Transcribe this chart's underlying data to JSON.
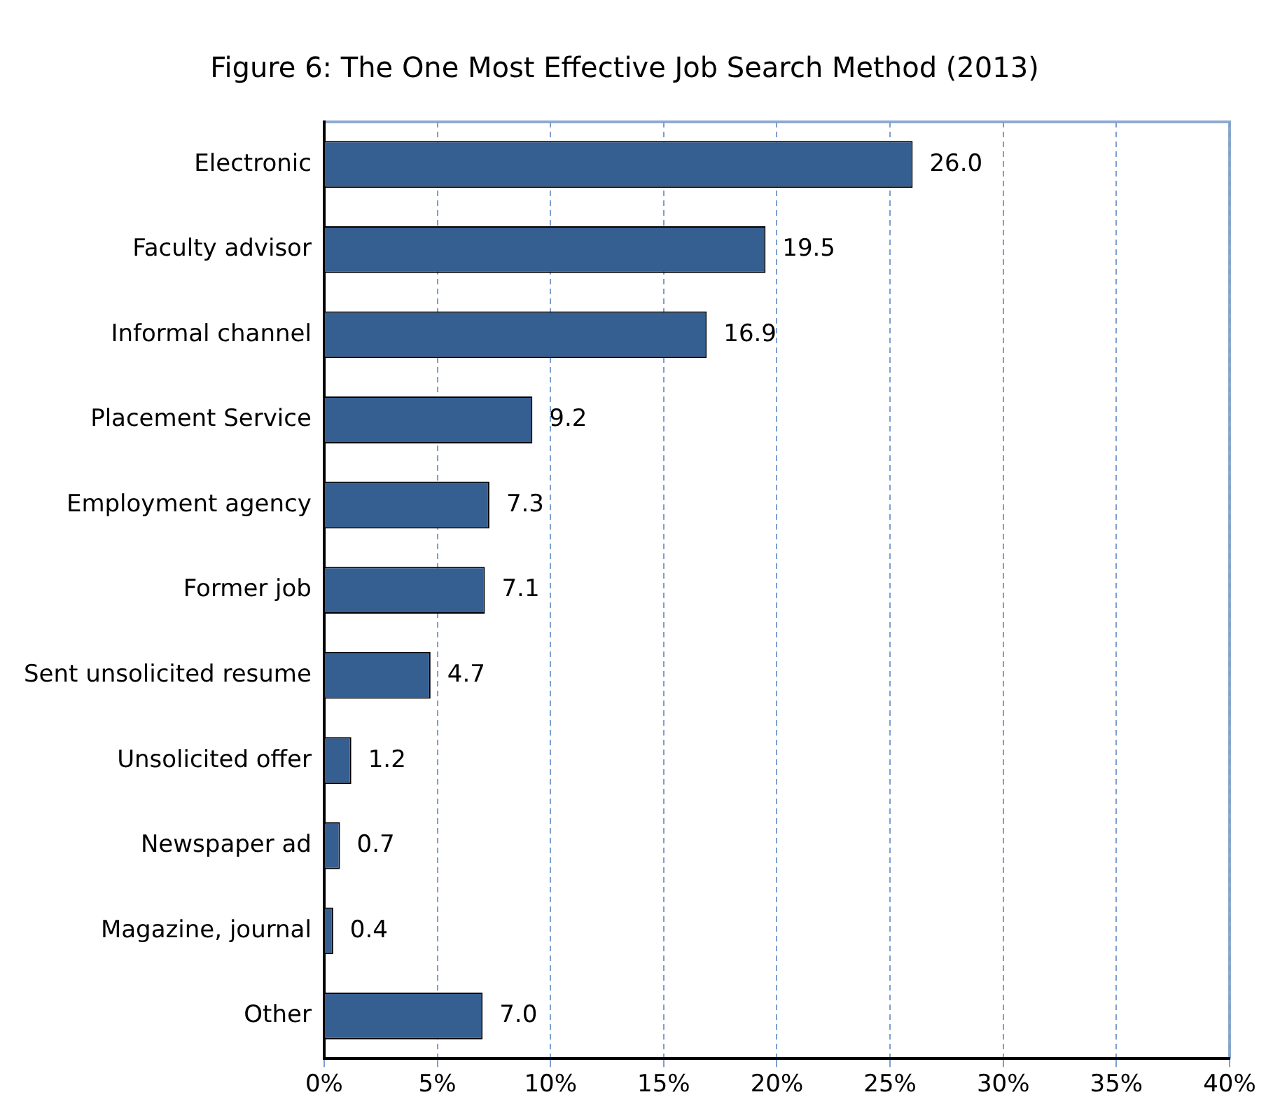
{
  "chart_data": {
    "type": "bar",
    "orientation": "horizontal",
    "title": "Figure 6: The One Most Effective Job Search Method (2013)",
    "categories": [
      "Electronic",
      "Faculty advisor",
      "Informal channel",
      "Placement Service",
      "Employment agency",
      "Former job",
      "Sent unsolicited resume",
      "Unsolicited offer",
      "Newspaper ad",
      "Magazine, journal",
      "Other"
    ],
    "values": [
      26.0,
      19.5,
      16.9,
      9.2,
      7.3,
      7.1,
      4.7,
      1.2,
      0.7,
      0.4,
      7.0
    ],
    "value_labels": [
      "26.0",
      "19.5",
      "16.9",
      "9.2",
      "7.3",
      "7.1",
      "4.7",
      "1.2",
      "0.7",
      "0.4",
      "7.0"
    ],
    "color": "#355e91",
    "xlim": [
      0,
      40
    ],
    "xticks": [
      {
        "value": 0,
        "label": "0%"
      },
      {
        "value": 5,
        "label": "5%"
      },
      {
        "value": 10,
        "label": "10%"
      },
      {
        "value": 15,
        "label": "15%"
      },
      {
        "value": 20,
        "label": "20%"
      },
      {
        "value": 25,
        "label": "25%"
      },
      {
        "value": 30,
        "label": "30%"
      },
      {
        "value": 35,
        "label": "35%"
      },
      {
        "value": 40,
        "label": "40%"
      }
    ],
    "grid": "x"
  }
}
